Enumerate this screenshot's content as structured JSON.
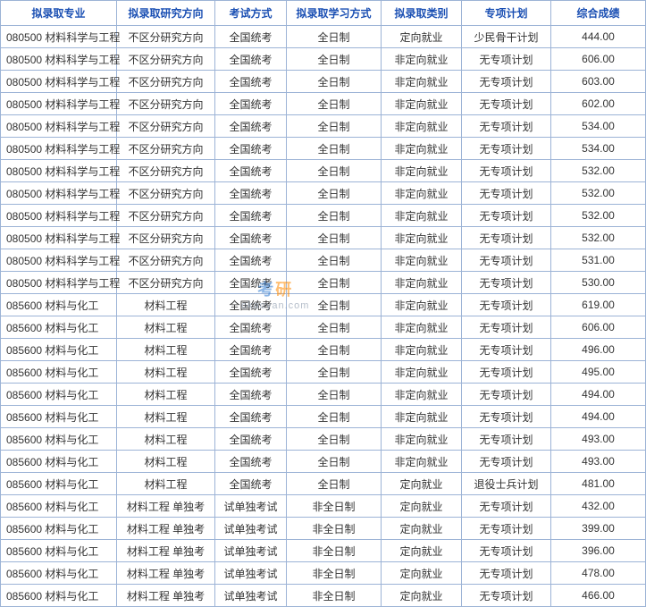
{
  "table": {
    "columns": [
      "拟录取专业",
      "拟录取研究方向",
      "考试方式",
      "拟录取学习方式",
      "拟录取类别",
      "专项计划",
      "综合成绩"
    ],
    "col_classes": [
      "col0",
      "col1",
      "col2",
      "col3",
      "col4",
      "col5",
      "col6"
    ],
    "border_color": "#9cb3d6",
    "header_color": "#1a4fb3",
    "rows": [
      [
        "080500 材料科学与工程",
        "不区分研究方向",
        "全国统考",
        "全日制",
        "定向就业",
        "少民骨干计划",
        "444.00"
      ],
      [
        "080500 材料科学与工程",
        "不区分研究方向",
        "全国统考",
        "全日制",
        "非定向就业",
        "无专项计划",
        "606.00"
      ],
      [
        "080500 材料科学与工程",
        "不区分研究方向",
        "全国统考",
        "全日制",
        "非定向就业",
        "无专项计划",
        "603.00"
      ],
      [
        "080500 材料科学与工程",
        "不区分研究方向",
        "全国统考",
        "全日制",
        "非定向就业",
        "无专项计划",
        "602.00"
      ],
      [
        "080500 材料科学与工程",
        "不区分研究方向",
        "全国统考",
        "全日制",
        "非定向就业",
        "无专项计划",
        "534.00"
      ],
      [
        "080500 材料科学与工程",
        "不区分研究方向",
        "全国统考",
        "全日制",
        "非定向就业",
        "无专项计划",
        "534.00"
      ],
      [
        "080500 材料科学与工程",
        "不区分研究方向",
        "全国统考",
        "全日制",
        "非定向就业",
        "无专项计划",
        "532.00"
      ],
      [
        "080500 材料科学与工程",
        "不区分研究方向",
        "全国统考",
        "全日制",
        "非定向就业",
        "无专项计划",
        "532.00"
      ],
      [
        "080500 材料科学与工程",
        "不区分研究方向",
        "全国统考",
        "全日制",
        "非定向就业",
        "无专项计划",
        "532.00"
      ],
      [
        "080500 材料科学与工程",
        "不区分研究方向",
        "全国统考",
        "全日制",
        "非定向就业",
        "无专项计划",
        "532.00"
      ],
      [
        "080500 材料科学与工程",
        "不区分研究方向",
        "全国统考",
        "全日制",
        "非定向就业",
        "无专项计划",
        "531.00"
      ],
      [
        "080500 材料科学与工程",
        "不区分研究方向",
        "全国统考",
        "全日制",
        "非定向就业",
        "无专项计划",
        "530.00"
      ],
      [
        "085600 材料与化工",
        "材料工程",
        "全国统考",
        "全日制",
        "非定向就业",
        "无专项计划",
        "619.00"
      ],
      [
        "085600 材料与化工",
        "材料工程",
        "全国统考",
        "全日制",
        "非定向就业",
        "无专项计划",
        "606.00"
      ],
      [
        "085600 材料与化工",
        "材料工程",
        "全国统考",
        "全日制",
        "非定向就业",
        "无专项计划",
        "496.00"
      ],
      [
        "085600 材料与化工",
        "材料工程",
        "全国统考",
        "全日制",
        "非定向就业",
        "无专项计划",
        "495.00"
      ],
      [
        "085600 材料与化工",
        "材料工程",
        "全国统考",
        "全日制",
        "非定向就业",
        "无专项计划",
        "494.00"
      ],
      [
        "085600 材料与化工",
        "材料工程",
        "全国统考",
        "全日制",
        "非定向就业",
        "无专项计划",
        "494.00"
      ],
      [
        "085600 材料与化工",
        "材料工程",
        "全国统考",
        "全日制",
        "非定向就业",
        "无专项计划",
        "493.00"
      ],
      [
        "085600 材料与化工",
        "材料工程",
        "全国统考",
        "全日制",
        "非定向就业",
        "无专项计划",
        "493.00"
      ],
      [
        "085600 材料与化工",
        "材料工程",
        "全国统考",
        "全日制",
        "定向就业",
        "退役士兵计划",
        "481.00"
      ],
      [
        "085600 材料与化工",
        "材料工程 单独考",
        "试单独考试",
        "非全日制",
        "定向就业",
        "无专项计划",
        "432.00"
      ],
      [
        "085600 材料与化工",
        "材料工程 单独考",
        "试单独考试",
        "非全日制",
        "定向就业",
        "无专项计划",
        "399.00"
      ],
      [
        "085600 材料与化工",
        "材料工程 单独考",
        "试单独考试",
        "非全日制",
        "定向就业",
        "无专项计划",
        "396.00"
      ],
      [
        "085600 材料与化工",
        "材料工程 单独考",
        "试单独考试",
        "非全日制",
        "定向就业",
        "无专项计划",
        "478.00"
      ],
      [
        "085600 材料与化工",
        "材料工程 单独考",
        "试单独考试",
        "非全日制",
        "定向就业",
        "无专项计划",
        "466.00"
      ]
    ]
  },
  "watermark": {
    "brand1": "考",
    "brand2": "研",
    "domain": "okaoyan.com"
  }
}
